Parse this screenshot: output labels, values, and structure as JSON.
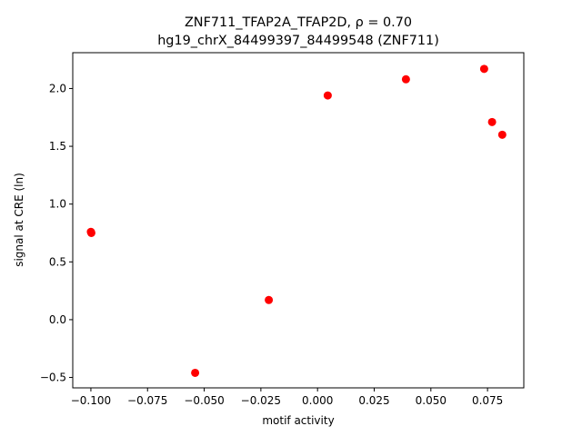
{
  "chart_data": {
    "type": "scatter",
    "title_line1": "ZNF711_TFAP2A_TFAP2D, ρ = 0.70",
    "title_line2": "hg19_chrX_84499397_84499548 (ZNF711)",
    "xlabel": "motif activity",
    "ylabel": "signal at CRE (ln)",
    "xlim": [
      -0.108,
      0.091
    ],
    "ylim": [
      -0.59,
      2.31
    ],
    "xticks": [
      -0.1,
      -0.075,
      -0.05,
      -0.025,
      0.0,
      0.025,
      0.05,
      0.075
    ],
    "xtick_labels": [
      "−0.100",
      "−0.075",
      "−0.050",
      "−0.025",
      "0.000",
      "0.025",
      "0.050",
      "0.075"
    ],
    "yticks": [
      -0.5,
      0.0,
      0.5,
      1.0,
      1.5,
      2.0
    ],
    "ytick_labels": [
      "−0.5",
      "0.0",
      "0.5",
      "1.0",
      "1.5",
      "2.0"
    ],
    "grid": false,
    "marker_color": "#ff0000",
    "points": [
      {
        "x": -0.1,
        "y": 0.76
      },
      {
        "x": -0.0998,
        "y": 0.75
      },
      {
        "x": -0.054,
        "y": -0.46
      },
      {
        "x": -0.0215,
        "y": 0.17
      },
      {
        "x": 0.0045,
        "y": 1.94
      },
      {
        "x": 0.039,
        "y": 2.08
      },
      {
        "x": 0.0735,
        "y": 2.17
      },
      {
        "x": 0.077,
        "y": 1.71
      },
      {
        "x": 0.0815,
        "y": 1.6
      }
    ]
  }
}
